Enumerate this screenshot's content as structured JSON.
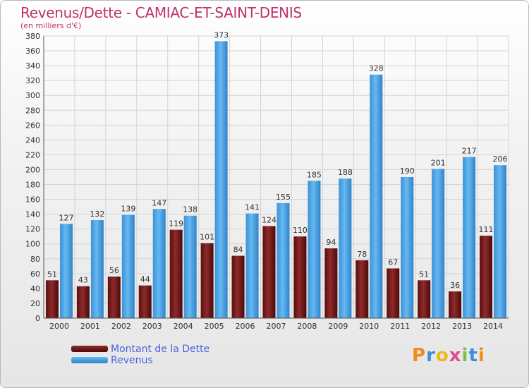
{
  "header": {
    "title": "Revenus/Dette - CAMIAC-ET-SAINT-DENIS",
    "subtitle": "(en milliers d'€)"
  },
  "chart_data": {
    "type": "bar",
    "categories": [
      "2000",
      "2001",
      "2002",
      "2003",
      "2004",
      "2005",
      "2006",
      "2007",
      "2008",
      "2009",
      "2010",
      "2011",
      "2012",
      "2013",
      "2014"
    ],
    "series": [
      {
        "name": "Montant de la Dette",
        "color": "#7a1a1a",
        "values": [
          51,
          43,
          56,
          44,
          119,
          101,
          84,
          124,
          110,
          94,
          78,
          67,
          51,
          36,
          111
        ]
      },
      {
        "name": "Revenus",
        "color": "#4aa3e6",
        "values": [
          127,
          132,
          139,
          147,
          138,
          373,
          141,
          155,
          185,
          188,
          328,
          190,
          201,
          217,
          206
        ]
      }
    ],
    "title": "Revenus/Dette - CAMIAC-ET-SAINT-DENIS",
    "ylabel": "(en milliers d'€)",
    "ylim": [
      0,
      380
    ],
    "ytick_step": 20,
    "grid": true,
    "legend": "bottom-left"
  },
  "legend": {
    "items": [
      {
        "label": "Montant de la Dette",
        "color": "#7a1a1a"
      },
      {
        "label": "Revenus",
        "color": "#4aa3e6"
      }
    ]
  },
  "logo": {
    "text": "Proxiti",
    "letters": [
      "P",
      "r",
      "o",
      "x",
      "i",
      "t",
      "i"
    ]
  }
}
